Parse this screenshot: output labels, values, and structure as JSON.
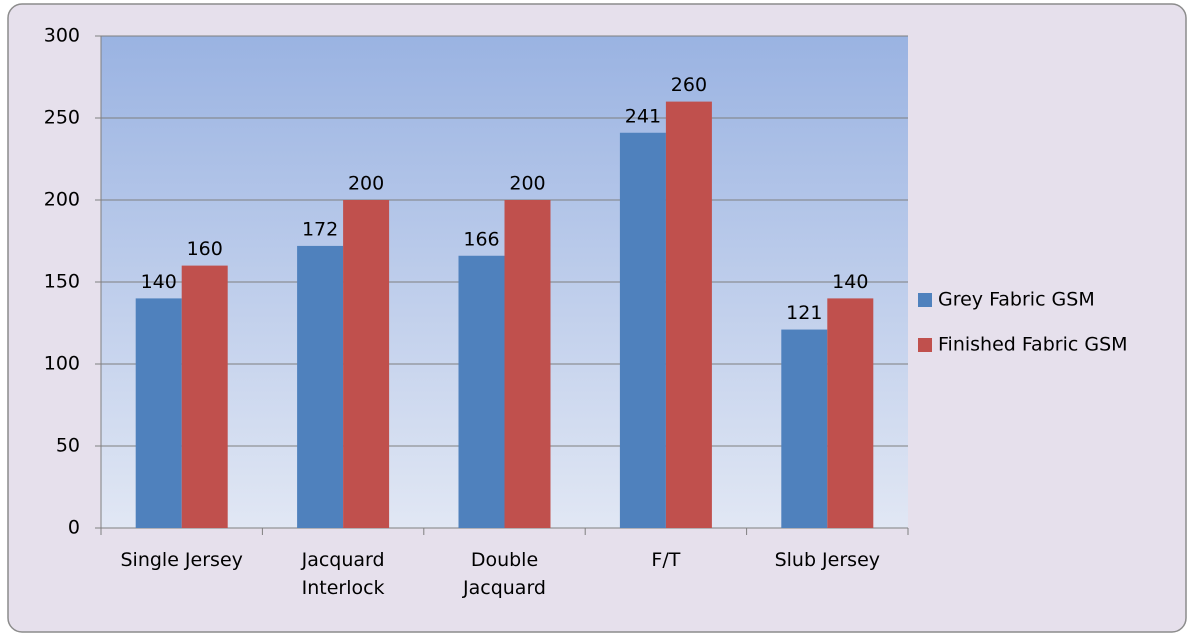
{
  "chart_data": {
    "type": "bar",
    "categories": [
      "Single Jersey",
      "Jacquard\nInterlock",
      "Double\nJacquard",
      "F/T",
      "Slub Jersey"
    ],
    "series": [
      {
        "name": "Grey Fabric GSM",
        "color": "#4f81bd",
        "values": [
          140,
          172,
          166,
          241,
          121
        ]
      },
      {
        "name": "Finished Fabric GSM",
        "color": "#c0504d",
        "values": [
          160,
          200,
          200,
          260,
          140
        ]
      }
    ],
    "ylim": [
      0,
      300
    ],
    "yticks": [
      0,
      50,
      100,
      150,
      200,
      250,
      300
    ],
    "grid": true,
    "legend": "right"
  }
}
